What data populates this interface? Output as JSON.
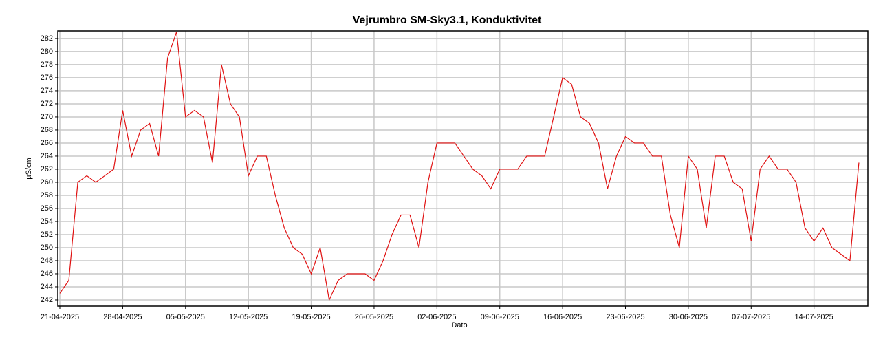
{
  "chart_data": {
    "type": "line",
    "title": "Vejrumbro SM-Sky3.1, Konduktivitet",
    "x_label": "Dato",
    "y_label": "µS/cm",
    "color": "#e01010",
    "grid": true,
    "x": [
      "2025-04-21",
      "2025-04-22",
      "2025-04-23",
      "2025-04-24",
      "2025-04-25",
      "2025-04-26",
      "2025-04-27",
      "2025-04-28",
      "2025-04-29",
      "2025-04-30",
      "2025-05-01",
      "2025-05-02",
      "2025-05-03",
      "2025-05-04",
      "2025-05-05",
      "2025-05-06",
      "2025-05-07",
      "2025-05-08",
      "2025-05-09",
      "2025-05-10",
      "2025-05-11",
      "2025-05-12",
      "2025-05-13",
      "2025-05-14",
      "2025-05-15",
      "2025-05-16",
      "2025-05-17",
      "2025-05-18",
      "2025-05-19",
      "2025-05-20",
      "2025-05-21",
      "2025-05-22",
      "2025-05-23",
      "2025-05-24",
      "2025-05-25",
      "2025-05-26",
      "2025-05-27",
      "2025-05-28",
      "2025-05-29",
      "2025-05-30",
      "2025-05-31",
      "2025-06-01",
      "2025-06-02",
      "2025-06-03",
      "2025-06-04",
      "2025-06-05",
      "2025-06-06",
      "2025-06-07",
      "2025-06-08",
      "2025-06-09",
      "2025-06-10",
      "2025-06-11",
      "2025-06-12",
      "2025-06-13",
      "2025-06-14",
      "2025-06-15",
      "2025-06-16",
      "2025-06-17",
      "2025-06-18",
      "2025-06-19",
      "2025-06-20",
      "2025-06-21",
      "2025-06-22",
      "2025-06-23",
      "2025-06-24",
      "2025-06-25",
      "2025-06-26",
      "2025-06-27",
      "2025-06-28",
      "2025-06-29",
      "2025-06-30",
      "2025-07-01",
      "2025-07-02",
      "2025-07-03",
      "2025-07-04",
      "2025-07-05",
      "2025-07-06",
      "2025-07-07",
      "2025-07-08",
      "2025-07-09",
      "2025-07-10",
      "2025-07-11",
      "2025-07-12",
      "2025-07-13",
      "2025-07-14",
      "2025-07-15",
      "2025-07-16",
      "2025-07-17",
      "2025-07-18",
      "2025-07-19"
    ],
    "values": [
      243,
      245,
      260,
      261,
      260,
      261,
      262,
      271,
      264,
      268,
      269,
      264,
      279,
      283,
      270,
      271,
      270,
      263,
      278,
      272,
      270,
      261,
      264,
      264,
      258,
      253,
      250,
      249,
      246,
      250,
      242,
      245,
      246,
      246,
      246,
      245,
      248,
      252,
      255,
      255,
      250,
      260,
      266,
      266,
      266,
      264,
      262,
      261,
      259,
      262,
      262,
      262,
      264,
      264,
      264,
      270,
      276,
      275,
      270,
      269,
      266,
      259,
      264,
      267,
      266,
      266,
      264,
      264,
      255,
      250,
      264,
      262,
      253,
      264,
      264,
      260,
      259,
      251,
      262,
      264,
      262,
      262,
      260,
      253,
      251,
      253,
      250,
      249,
      248,
      263
    ],
    "xlim": [
      "2025-04-21",
      "2025-07-20"
    ],
    "xticks": [
      {
        "value": "2025-04-21",
        "label": "21-04-2025"
      },
      {
        "value": "2025-04-28",
        "label": "28-04-2025"
      },
      {
        "value": "2025-05-05",
        "label": "05-05-2025"
      },
      {
        "value": "2025-05-12",
        "label": "12-05-2025"
      },
      {
        "value": "2025-05-19",
        "label": "19-05-2025"
      },
      {
        "value": "2025-05-26",
        "label": "26-05-2025"
      },
      {
        "value": "2025-06-02",
        "label": "02-06-2025"
      },
      {
        "value": "2025-06-09",
        "label": "09-06-2025"
      },
      {
        "value": "2025-06-16",
        "label": "16-06-2025"
      },
      {
        "value": "2025-06-23",
        "label": "23-06-2025"
      },
      {
        "value": "2025-06-30",
        "label": "30-06-2025"
      },
      {
        "value": "2025-07-07",
        "label": "07-07-2025"
      },
      {
        "value": "2025-07-14",
        "label": "14-07-2025"
      }
    ],
    "ylim": [
      241.05,
      283.15
    ],
    "yticks": [
      242,
      244,
      246,
      248,
      250,
      252,
      254,
      256,
      258,
      260,
      262,
      264,
      266,
      268,
      270,
      272,
      274,
      276,
      278,
      280,
      282
    ]
  }
}
